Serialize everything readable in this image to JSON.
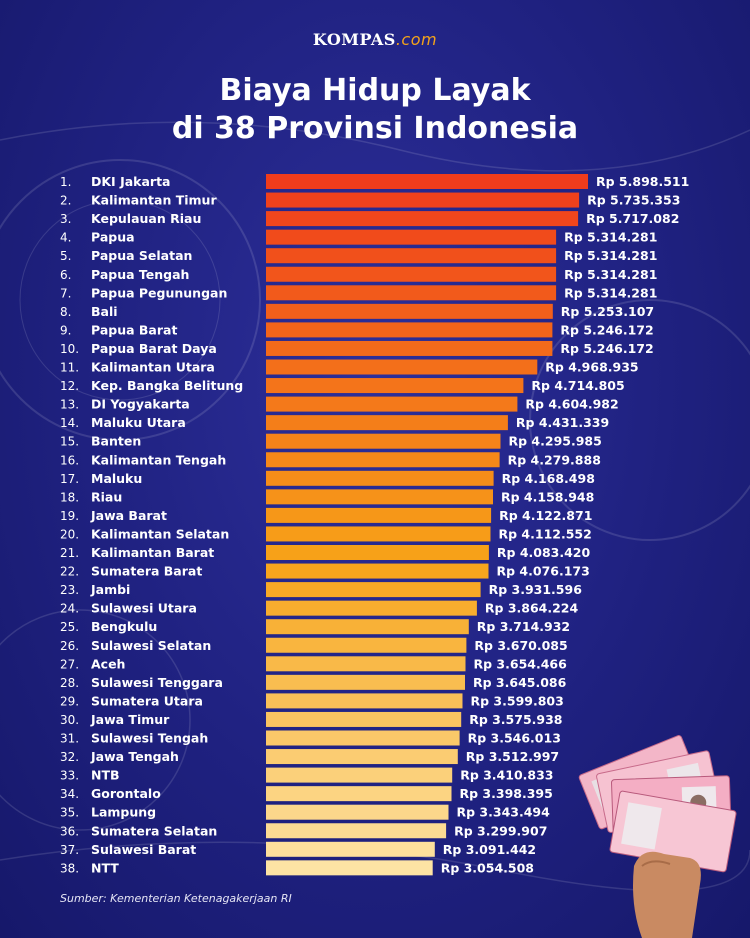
{
  "brand": {
    "name": "KOMPAS",
    "suffix": ".com"
  },
  "header": {
    "title_line1": "Biaya Hidup Layak",
    "title_line2": "di 38 Provinsi Indonesia"
  },
  "footer": {
    "source": "Sumber: Kementerian Ketenagakerjaan RI"
  },
  "colors": {
    "background": "#1f2180",
    "bar_top": "#f03c1c",
    "bar_mid": "#f7a318",
    "bar_bottom": "#fde3a4"
  },
  "chart_data": {
    "type": "bar",
    "orientation": "horizontal",
    "title": "Biaya Hidup Layak di 38 Provinsi Indonesia",
    "value_prefix": "Rp",
    "ranks": [
      "1.",
      "2.",
      "3.",
      "4.",
      "5.",
      "6.",
      "7.",
      "8.",
      "9.",
      "10.",
      "11.",
      "12.",
      "13.",
      "14.",
      "15.",
      "16.",
      "17.",
      "18.",
      "19.",
      "20.",
      "21.",
      "22.",
      "23.",
      "24.",
      "25.",
      "26.",
      "27.",
      "28.",
      "29.",
      "30.",
      "31.",
      "32.",
      "33.",
      "34.",
      "35.",
      "36.",
      "37.",
      "38."
    ],
    "categories": [
      "DKI Jakarta",
      "Kalimantan Timur",
      "Kepulauan Riau",
      "Papua",
      "Papua Selatan",
      "Papua Tengah",
      "Papua Pegunungan",
      "Bali",
      "Papua Barat",
      "Papua Barat Daya",
      "Kalimantan Utara",
      "Kep. Bangka Belitung",
      "DI Yogyakarta",
      "Maluku Utara",
      "Banten",
      "Kalimantan Tengah",
      "Maluku",
      "Riau",
      "Jawa Barat",
      "Kalimantan Selatan",
      "Kalimantan Barat",
      "Sumatera Barat",
      "Jambi",
      "Sulawesi Utara",
      "Bengkulu",
      "Sulawesi Selatan",
      "Aceh",
      "Sulawesi Tenggara",
      "Sumatera Utara",
      "Jawa Timur",
      "Sulawesi Tengah",
      "Jawa Tengah",
      "NTB",
      "Gorontalo",
      "Lampung",
      "Sumatera Selatan",
      "Sulawesi Barat",
      "NTT"
    ],
    "values": [
      5898511,
      5735353,
      5717082,
      5314281,
      5314281,
      5314281,
      5314281,
      5253107,
      5246172,
      5246172,
      4968935,
      4714805,
      4604982,
      4431339,
      4295985,
      4279888,
      4168498,
      4158948,
      4122871,
      4112552,
      4083420,
      4076173,
      3931596,
      3864224,
      3714932,
      3670085,
      3654466,
      3645086,
      3599803,
      3575938,
      3546013,
      3512997,
      3410833,
      3398395,
      3343494,
      3299907,
      3091442,
      3054508
    ],
    "value_labels": [
      "Rp 5.898.511",
      "Rp 5.735.353",
      "Rp 5.717.082",
      "Rp 5.314.281",
      "Rp 5.314.281",
      "Rp 5.314.281",
      "Rp 5.314.281",
      "Rp 5.253.107",
      "Rp 5.246.172",
      "Rp 5.246.172",
      "Rp 4.968.935",
      "Rp 4.714.805",
      "Rp 4.604.982",
      "Rp 4.431.339",
      "Rp 4.295.985",
      "Rp 4.279.888",
      "Rp 4.168.498",
      "Rp 4.158.948",
      "Rp 4.122.871",
      "Rp 4.112.552",
      "Rp 4.083.420",
      "Rp 4.076.173",
      "Rp 3.931.596",
      "Rp 3.864.224",
      "Rp 3.714.932",
      "Rp 3.670.085",
      "Rp 3.654.466",
      "Rp 3.645.086",
      "Rp 3.599.803",
      "Rp 3.575.938",
      "Rp 3.546.013",
      "Rp 3.512.997",
      "Rp 3.410.833",
      "Rp 3.398.395",
      "Rp 3.343.494",
      "Rp 3.299.907",
      "Rp 3.091.442",
      "Rp 3.054.508"
    ],
    "legend": false,
    "grid": false
  }
}
